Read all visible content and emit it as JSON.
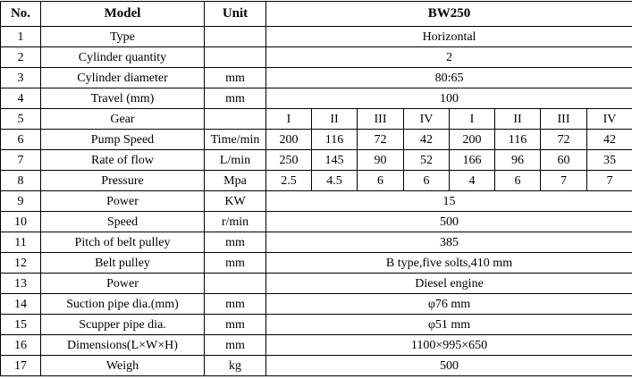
{
  "header": {
    "no": "No.",
    "model": "Model",
    "unit": "Unit",
    "value": "BW250"
  },
  "rows": [
    {
      "no": "1",
      "model": "Type",
      "unit": "",
      "value": "Horizontal"
    },
    {
      "no": "2",
      "model": "Cylinder quantity",
      "unit": "",
      "value": "2"
    },
    {
      "no": "3",
      "model": "Cylinder diameter",
      "unit": "mm",
      "value": "80:65"
    },
    {
      "no": "4",
      "model": "Travel (mm)",
      "unit": "mm",
      "value": "100"
    },
    {
      "no": "5",
      "model": "Gear",
      "unit": "",
      "values": [
        "I",
        "II",
        "III",
        "IV",
        "I",
        "II",
        "III",
        "IV"
      ]
    },
    {
      "no": "6",
      "model": "Pump Speed",
      "unit": "Time/min",
      "values": [
        "200",
        "116",
        "72",
        "42",
        "200",
        "116",
        "72",
        "42"
      ]
    },
    {
      "no": "7",
      "model": "Rate of flow",
      "unit": "L/min",
      "values": [
        "250",
        "145",
        "90",
        "52",
        "166",
        "96",
        "60",
        "35"
      ]
    },
    {
      "no": "8",
      "model": "Pressure",
      "unit": "Mpa",
      "values": [
        "2.5",
        "4.5",
        "6",
        "6",
        "4",
        "6",
        "7",
        "7"
      ]
    },
    {
      "no": "9",
      "model": "Power",
      "unit": "KW",
      "value": "15"
    },
    {
      "no": "10",
      "model": "Speed",
      "unit": "r/min",
      "value": "500"
    },
    {
      "no": "11",
      "model": "Pitch of belt pulley",
      "unit": "mm",
      "value": "385"
    },
    {
      "no": "12",
      "model": "Belt pulley",
      "unit": "mm",
      "value": "B type,five solts,410 mm"
    },
    {
      "no": "13",
      "model": "Power",
      "unit": "",
      "value": "Diesel engine"
    },
    {
      "no": "14",
      "model": "Suction pipe dia.(mm)",
      "unit": "mm",
      "value": "φ76 mm"
    },
    {
      "no": "15",
      "model": "Scupper pipe dia.",
      "unit": "mm",
      "value": "φ51 mm"
    },
    {
      "no": "16",
      "model": "Dimensions(L×W×H)",
      "unit": "mm",
      "value": "1100×995×650"
    },
    {
      "no": "17",
      "model": "Weigh",
      "unit": "kg",
      "value": "500"
    }
  ]
}
